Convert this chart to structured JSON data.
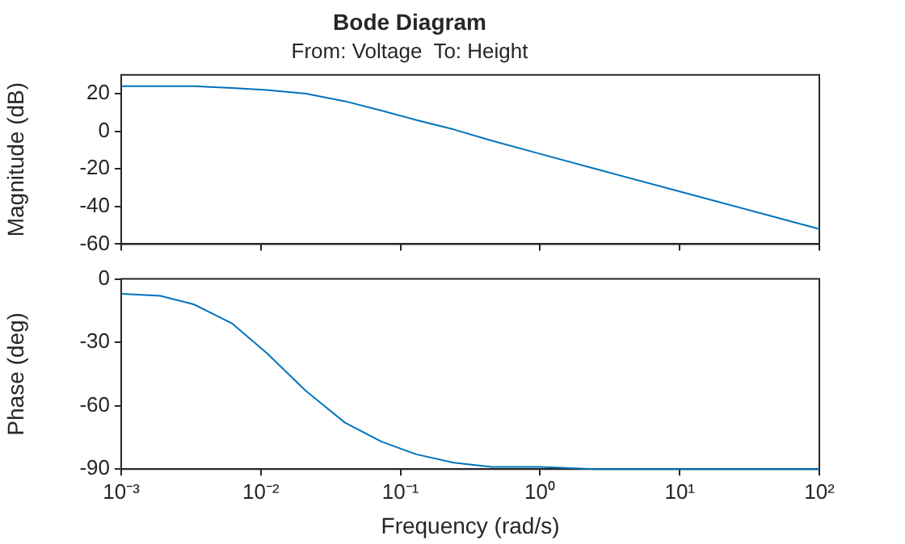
{
  "chart_data": [
    {
      "type": "line",
      "title": "Bode Diagram",
      "subtitle": "From: Voltage  To: Height",
      "ylabel": "Magnitude (dB)",
      "series": [
        {
          "color": "#0072bd",
          "x": [
            0.001,
            0.0019,
            0.0033,
            0.0062,
            0.011,
            0.021,
            0.04,
            0.073,
            0.13,
            0.24,
            0.45,
            1,
            2.5,
            10,
            100
          ],
          "values": [
            24,
            24,
            24,
            23,
            22,
            20,
            16,
            11,
            6,
            1,
            -5,
            -12,
            -20,
            -32,
            -52
          ]
        }
      ],
      "xlim": [
        0.001,
        100
      ],
      "xticks": [
        {
          "value": 0.001,
          "label": null
        },
        {
          "value": 0.01,
          "label": null
        },
        {
          "value": 0.1,
          "label": null
        },
        {
          "value": 1,
          "label": null
        },
        {
          "value": 10,
          "label": null
        },
        {
          "value": 100,
          "label": null
        }
      ],
      "ylim": [
        -60,
        30
      ],
      "yticks": [
        -60,
        -40,
        -20,
        0,
        20
      ],
      "log": "x",
      "grid": false,
      "tick_labels": "y"
    },
    {
      "type": "line",
      "xlabel": "Frequency (rad/s)",
      "ylabel": "Phase (deg)",
      "series": [
        {
          "color": "#0072bd",
          "x": [
            0.001,
            0.0019,
            0.0033,
            0.0062,
            0.011,
            0.021,
            0.04,
            0.073,
            0.13,
            0.24,
            0.45,
            1,
            2.5,
            10,
            100
          ],
          "values": [
            -7,
            -8,
            -12,
            -21,
            -35,
            -53,
            -68,
            -77,
            -83,
            -87,
            -89,
            -89,
            -90,
            -90,
            -90
          ]
        }
      ],
      "xlim": [
        0.001,
        100
      ],
      "xticks": [
        {
          "value": 0.001,
          "label": "10⁻³"
        },
        {
          "value": 0.01,
          "label": "10⁻²"
        },
        {
          "value": 0.1,
          "label": "10⁻¹"
        },
        {
          "value": 1,
          "label": "10⁰"
        },
        {
          "value": 10,
          "label": "10¹"
        },
        {
          "value": 100,
          "label": "10²"
        }
      ],
      "ylim": [
        -90,
        0
      ],
      "yticks": [
        -90,
        -60,
        -30,
        0
      ],
      "log": "x",
      "grid": false
    }
  ]
}
